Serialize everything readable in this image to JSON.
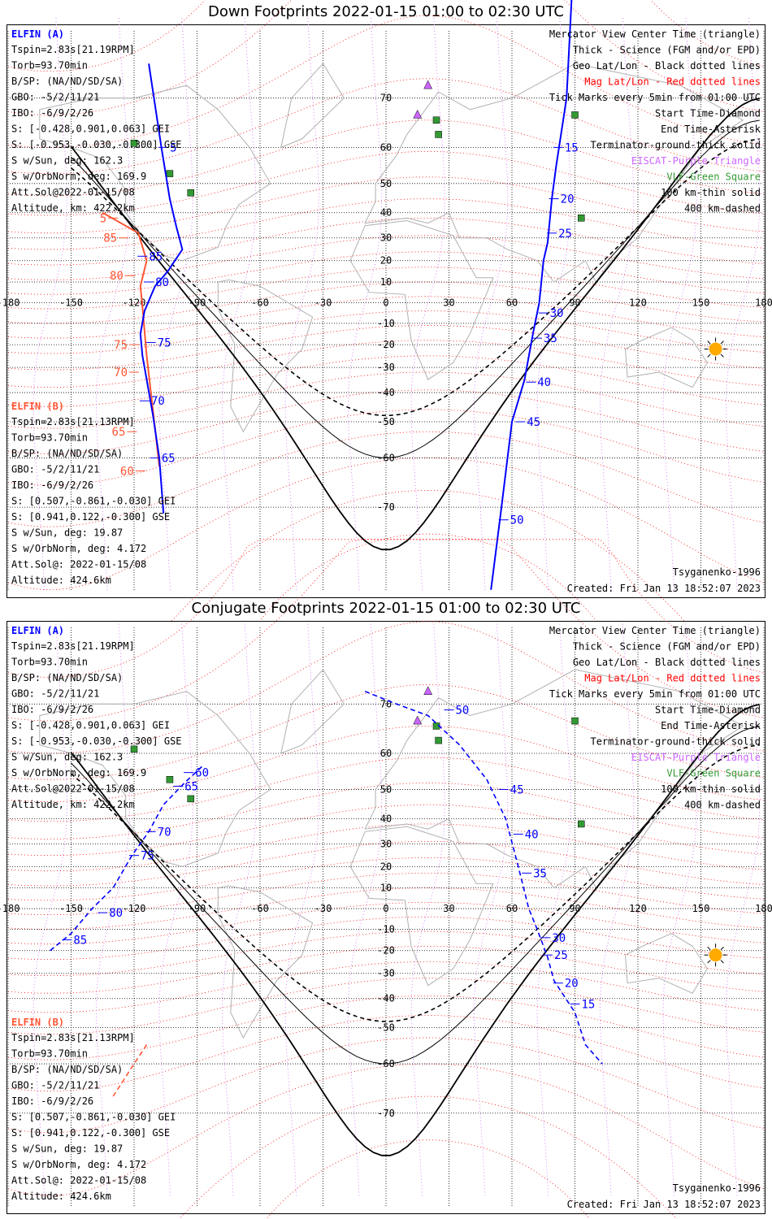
{
  "panels": [
    {
      "title": "Down Footprints 2022-01-15 01:00 to 02:30 UTC",
      "legend_right": [
        {
          "text": "Mercator View Center Time (triangle)",
          "color": "#000000"
        },
        {
          "text": "Thick - Science (FGM and/or EPD)",
          "color": "#000000"
        },
        {
          "text": "Geo Lat/Lon - Black dotted lines",
          "color": "#000000"
        },
        {
          "text": "Mag Lat/Lon - Red dotted lines",
          "color": "#ff0000"
        },
        {
          "text": "Tick Marks every 5min from 01:00 UTC",
          "color": "#000000"
        },
        {
          "text": "Start Time-Diamond",
          "color": "#000000"
        },
        {
          "text": "End Time-Asterisk",
          "color": "#000000"
        },
        {
          "text": "Terminator-ground-thick solid",
          "color": "#000000"
        },
        {
          "text": "EISCAT-Purple Triangle",
          "color": "#cc66ff"
        },
        {
          "text": "VLF-Green Square",
          "color": "#339933"
        },
        {
          "text": "100 km-thin solid",
          "color": "#000000"
        },
        {
          "text": "400 km-dashed",
          "color": "#000000"
        }
      ],
      "elfin_a": {
        "title": "ELFIN (A)",
        "lines": [
          "Tspin=2.83s[21.19RPM]",
          "Torb=93.70min",
          "B/SP: (NA/ND/SD/SA)",
          "GBO: -5/2/11/21",
          "IBO: -6/9/2/26",
          "S: [-0.428,0.901,0.063] GEI",
          "S: [-0.953,-0.030,-0.300] GSE",
          "S w/Sun, deg: 162.3",
          "S w/OrbNorm, deg: 169.9",
          "Att.Sol@2022-01-15/08",
          "Altitude, km: 422.2km"
        ]
      },
      "elfin_b": {
        "title": "ELFIN (B)",
        "lines": [
          "Tspin=2.83s[21.13RPM]",
          "Torb=93.70min",
          "B/SP: (NA/ND/SD/SA)",
          "GBO: -5/2/11/21",
          "IBO: -6/9/2/26",
          "S: [0.507,-0.861,-0.030] GEI",
          "S: [0.941,0.122,-0.300] GSE",
          "S w/Sun, deg: 19.87",
          "S w/OrbNorm, deg: 4.172",
          "Att.Sol@: 2022-01-15/08",
          "Altitude: 424.6km"
        ]
      },
      "model": "Tsyganenko-1996",
      "created": "Created: Fri Jan 13 18:52:07 2023",
      "track_a": {
        "points": [
          [
            -113,
            75
          ],
          [
            -107,
            60
          ],
          [
            -103,
            45
          ],
          [
            -100,
            35
          ],
          [
            -97,
            25
          ],
          [
            -104,
            15
          ],
          [
            -110,
            8
          ],
          [
            -115,
            -4
          ],
          [
            -117,
            -15
          ],
          [
            -116,
            -25
          ],
          [
            -114,
            -35
          ],
          [
            -111,
            -48
          ],
          [
            -108,
            -60
          ],
          [
            -106,
            -71
          ]
        ],
        "ticks": [
          {
            "t": "5",
            "lon": -106,
            "lat": 60
          },
          {
            "t": "85",
            "lon": -116,
            "lat": 22
          },
          {
            "t": "80",
            "lon": -113,
            "lat": 10
          },
          {
            "t": "75",
            "lon": -112,
            "lat": -19
          },
          {
            "t": "70",
            "lon": -115,
            "lat": -43
          },
          {
            "t": "65",
            "lon": -110,
            "lat": -60
          }
        ]
      },
      "track_b": {
        "points": [
          [
            -135,
            40
          ],
          [
            -118,
            32
          ],
          [
            -114,
            20
          ],
          [
            -117,
            8
          ],
          [
            -116,
            -2
          ],
          [
            -114,
            -25
          ],
          [
            -112,
            -40
          ],
          [
            -110,
            -52
          ],
          [
            -108,
            -62
          ]
        ],
        "ticks": [
          {
            "t": "5",
            "lon": -130,
            "lat": 38
          },
          {
            "t": "85",
            "lon": -125,
            "lat": 30
          },
          {
            "t": "80",
            "lon": -122,
            "lat": 13
          },
          {
            "t": "75",
            "lon": -120,
            "lat": -20
          },
          {
            "t": "70",
            "lon": -120,
            "lat": -32
          },
          {
            "t": "65",
            "lon": -121,
            "lat": -53
          },
          {
            "t": "60",
            "lon": -117,
            "lat": -63
          }
        ]
      },
      "track_c": {
        "points": [
          [
            90,
            88
          ],
          [
            86,
            70
          ],
          [
            81,
            55
          ],
          [
            79,
            45
          ],
          [
            77,
            28
          ],
          [
            75,
            20
          ],
          [
            73,
            0
          ],
          [
            70,
            -15
          ],
          [
            66,
            -35
          ],
          [
            60,
            -50
          ],
          [
            55,
            -70
          ],
          [
            50,
            -80
          ]
        ],
        "ticks": [
          {
            "t": "15",
            "lon": 82,
            "lat": 60
          },
          {
            "t": "20",
            "lon": 80,
            "lat": 45
          },
          {
            "t": "25",
            "lon": 79,
            "lat": 32
          },
          {
            "t": "30",
            "lon": 75,
            "lat": -5
          },
          {
            "t": "35",
            "lon": 72,
            "lat": -17
          },
          {
            "t": "40",
            "lon": 69,
            "lat": -36
          },
          {
            "t": "45",
            "lon": 64,
            "lat": -50
          },
          {
            "t": "50",
            "lon": 56,
            "lat": -72
          }
        ]
      }
    },
    {
      "title": "Conjugate Footprints 2022-01-15 01:00 to 02:30 UTC",
      "model": "Tsyganenko-1996",
      "created": "Created: Fri Jan 13 18:52:07 2023",
      "track_a": {
        "points": [
          [
            -160,
            -20
          ],
          [
            -150,
            -12
          ],
          [
            -140,
            0
          ],
          [
            -130,
            10
          ],
          [
            -121,
            25
          ],
          [
            -113,
            35
          ],
          [
            -106,
            45
          ],
          [
            -96,
            52
          ],
          [
            -87,
            57
          ]
        ],
        "ticks": [
          {
            "t": "85",
            "lon": -152,
            "lat": -15
          },
          {
            "t": "80",
            "lon": -135,
            "lat": -2
          },
          {
            "t": "75",
            "lon": -120,
            "lat": 25
          },
          {
            "t": "70",
            "lon": -112,
            "lat": 35
          },
          {
            "t": "65",
            "lon": -99,
            "lat": 51
          },
          {
            "t": "60",
            "lon": -94,
            "lat": 55
          }
        ]
      },
      "track_b": {
        "points": [
          [
            -114,
            -55
          ],
          [
            -120,
            -60
          ],
          [
            -130,
            -67
          ]
        ],
        "ticks": []
      },
      "track_c": {
        "points": [
          [
            -10,
            72
          ],
          [
            5,
            70
          ],
          [
            20,
            68
          ],
          [
            35,
            62
          ],
          [
            48,
            53
          ],
          [
            57,
            40
          ],
          [
            63,
            20
          ],
          [
            68,
            0
          ],
          [
            72,
            -10
          ],
          [
            77,
            -23
          ],
          [
            80,
            -33
          ],
          [
            90,
            -45
          ],
          [
            95,
            -55
          ],
          [
            103,
            -60
          ]
        ],
        "ticks": [
          {
            "t": "50",
            "lon": 30,
            "lat": 69
          },
          {
            "t": "45",
            "lon": 56,
            "lat": 50
          },
          {
            "t": "40",
            "lon": 63,
            "lat": 34
          },
          {
            "t": "35",
            "lon": 67,
            "lat": 17
          },
          {
            "t": "30",
            "lon": 76,
            "lat": -14
          },
          {
            "t": "25",
            "lon": 77,
            "lat": -22
          },
          {
            "t": "20",
            "lon": 82,
            "lat": -34
          },
          {
            "t": "15",
            "lon": 90,
            "lat": -42
          }
        ]
      }
    }
  ],
  "lon_ticks": [
    "-180",
    "-150",
    "-120",
    "-90",
    "-60",
    "-30",
    "0",
    "30",
    "60",
    "90",
    "120",
    "150",
    "180"
  ],
  "lat_ticks": [
    "70",
    "60",
    "50",
    "40",
    "30",
    "20",
    "10",
    "0",
    "-10",
    "-20",
    "-30",
    "-40",
    "-50",
    "-60",
    "-70"
  ],
  "colors": {
    "orbit_a": "#0000ff",
    "orbit_b": "#ff5533",
    "mag_grid": "#ff0000",
    "terminator": "#000000",
    "land": "#b0b0b0",
    "sun": "#ffaa00",
    "eiscat": "#cc66ff",
    "vlf": "#339933"
  }
}
